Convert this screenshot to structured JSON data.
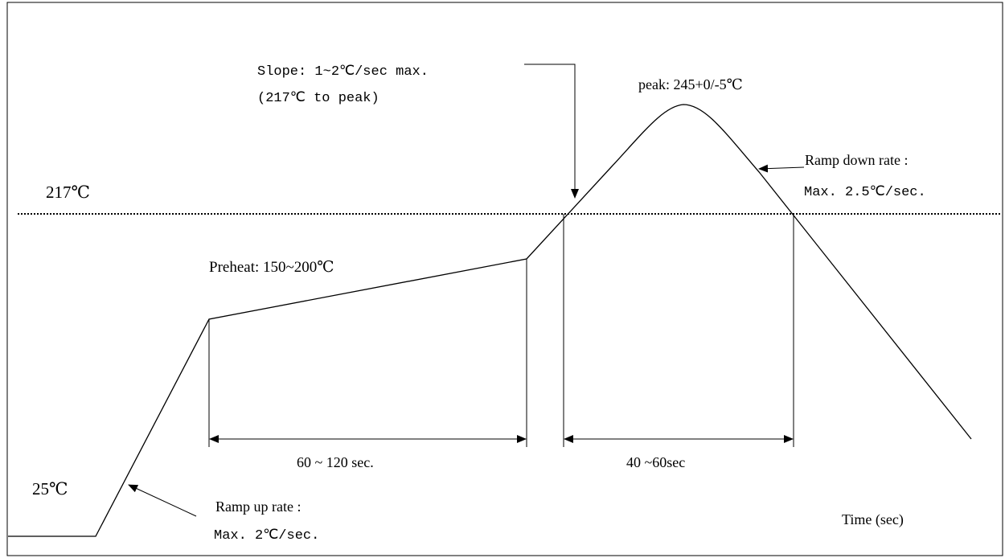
{
  "diagram": {
    "labels": {
      "temp_217": "217℃",
      "temp_25": "25℃",
      "slope_line1": "Slope: 1~2℃/sec max.",
      "slope_line2": "(217℃ to peak)",
      "peak": "peak: 245+0/-5℃",
      "ramp_down_line1": "Ramp down rate :",
      "ramp_down_line2": "Max. 2.5℃/sec.",
      "preheat": "Preheat: 150~200℃",
      "preheat_duration": "60 ~ 120 sec.",
      "reflow_duration": "40 ~60sec",
      "ramp_up_line1": "Ramp up rate :",
      "ramp_up_line2": "Max. 2℃/sec.",
      "time_axis": "Time (sec)"
    },
    "colors": {
      "line": "#000000",
      "background": "#ffffff"
    }
  }
}
